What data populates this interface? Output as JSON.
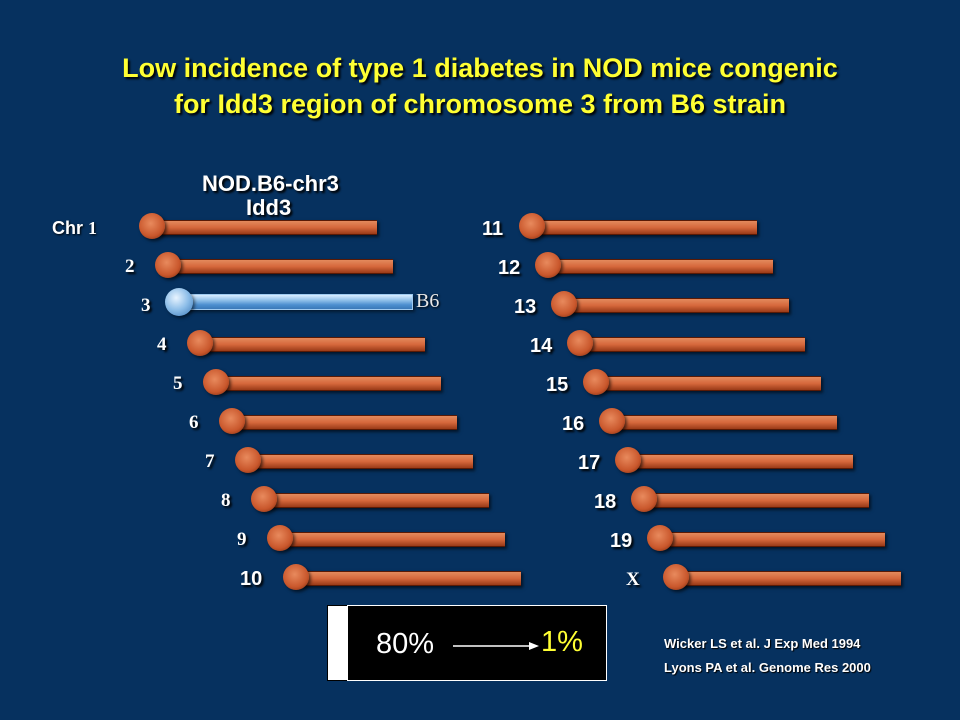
{
  "title": {
    "line1": "Low incidence of type 1 diabetes in NOD mice congenic",
    "line2": "for Idd3 region of chromosome 3 from B6 strain"
  },
  "strain": {
    "line1": "NOD.B6-chr3",
    "line2": "Idd3"
  },
  "chr_prefix": "Chr",
  "b6_label": "B6",
  "left_chromosomes": [
    "1",
    "2",
    "3",
    "4",
    "5",
    "6",
    "7",
    "8",
    "9",
    "10"
  ],
  "right_chromosomes": [
    "11",
    "12",
    "13",
    "14",
    "15",
    "16",
    "17",
    "18",
    "19",
    "X"
  ],
  "incidence": {
    "before": "80%",
    "after": "1%"
  },
  "references": [
    "Wicker LS et al. J Exp Med 1994",
    "Lyons PA et al. Genome Res 2000"
  ],
  "colors": {
    "background": "#06315f",
    "title": "#ffff33",
    "chromosome": "#d6683c",
    "b6_segment": "#8bbde8"
  }
}
